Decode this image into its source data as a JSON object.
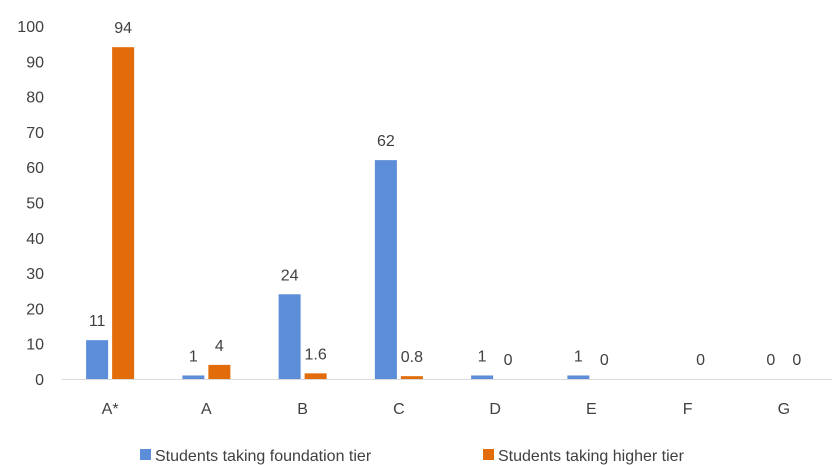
{
  "chart_data": {
    "type": "bar",
    "categories": [
      "A*",
      "A",
      "B",
      "C",
      "D",
      "E",
      "F",
      "G"
    ],
    "series": [
      {
        "name": "Students taking foundation tier",
        "color": "#5B8DD9",
        "values": [
          11,
          1,
          24,
          62,
          1,
          1,
          null,
          0
        ],
        "labels": [
          "11",
          "1",
          "24",
          "62",
          "1",
          "1",
          "",
          "0"
        ]
      },
      {
        "name": "Students taking higher tier",
        "color": "#E36C0A",
        "values": [
          94,
          4,
          1.6,
          0.8,
          0,
          0,
          0,
          0
        ],
        "labels": [
          "94",
          "4",
          "1.6",
          "0.8",
          "0",
          "0",
          "0",
          "0"
        ]
      }
    ],
    "yticks": [
      "0",
      "10",
      "20",
      "30",
      "40",
      "50",
      "60",
      "70",
      "80",
      "90",
      "100"
    ],
    "ylim": [
      0,
      100
    ],
    "grid": false,
    "legend_position": "bottom"
  }
}
